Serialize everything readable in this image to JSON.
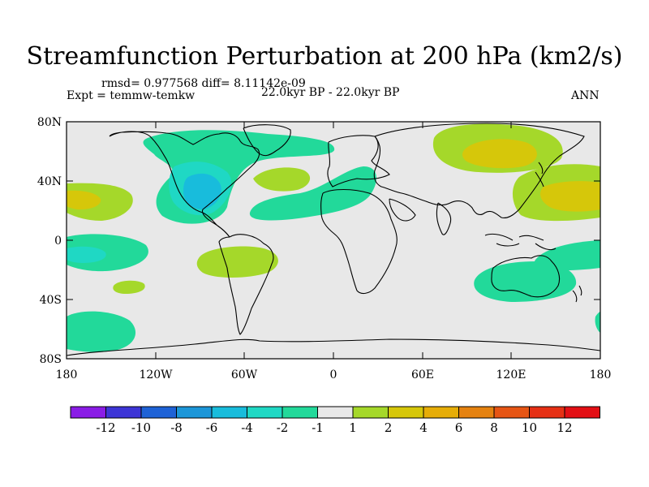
{
  "title": "Streamfunction Perturbation at 200 hPa (km2/s)",
  "rmsd_line": "rmsd= 0.977568 diff= 8.11142e-09",
  "expt_line": "Expt = temmw-temkw",
  "period_line": "22.0kyr BP - 22.0kyr BP",
  "season": "ANN",
  "lat_ticks": [
    "80N",
    "40N",
    "0",
    "40S",
    "80S"
  ],
  "lon_ticks": [
    "180",
    "120W",
    "60W",
    "0",
    "60E",
    "120E",
    "180"
  ],
  "colorbar": {
    "labels": [
      "-12",
      "-10",
      "-8",
      "-6",
      "-4",
      "-2",
      "-1",
      "1",
      "2",
      "4",
      "6",
      "8",
      "10",
      "12"
    ],
    "colors": [
      "#8a1ce6",
      "#3d35d6",
      "#1e62d6",
      "#1c96d8",
      "#18bcdc",
      "#1fd8c4",
      "#22d99a",
      "#e8e8e8",
      "#a5d82a",
      "#d6c70a",
      "#e6ad08",
      "#e58210",
      "#e65514",
      "#e63014",
      "#e30f14"
    ]
  },
  "colors": {
    "land_bg": "#e8e8e8",
    "teal_light": "#22d99a",
    "teal_mid": "#1fd8c4",
    "cyan": "#18bcdc",
    "green": "#a5d82a",
    "yellow": "#d6c70a"
  }
}
